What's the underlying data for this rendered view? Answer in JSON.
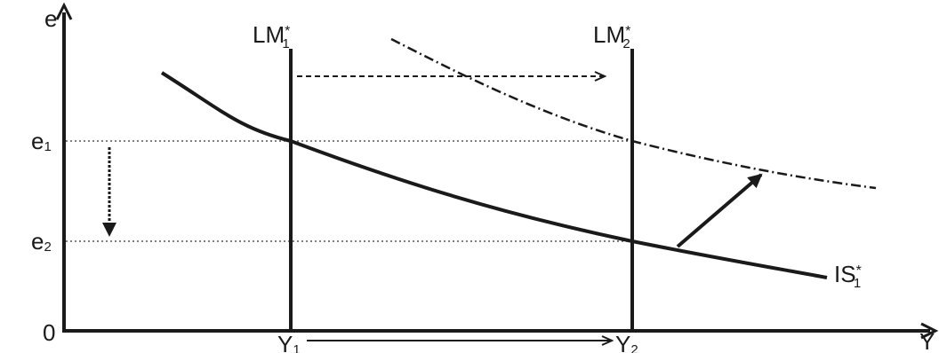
{
  "axes": {
    "y_axis_label": "e",
    "x_axis_label": "Y",
    "origin_label": "0"
  },
  "y_ticks": [
    {
      "base": "e",
      "sub": "1"
    },
    {
      "base": "e",
      "sub": "2"
    }
  ],
  "x_ticks": [
    {
      "base": "Y",
      "sub": "1"
    },
    {
      "base": "Y",
      "sub": "2"
    }
  ],
  "curves": {
    "lm1": {
      "base": "LM",
      "sup": "*",
      "sub": "1"
    },
    "lm2": {
      "base": "LM",
      "sup": "*",
      "sub": "2"
    },
    "is1": {
      "base": "IS",
      "sup": "*",
      "sub": "1"
    }
  },
  "colors": {
    "ink": "#1a1a1a",
    "guide": "#555555",
    "background": "#ffffff"
  }
}
